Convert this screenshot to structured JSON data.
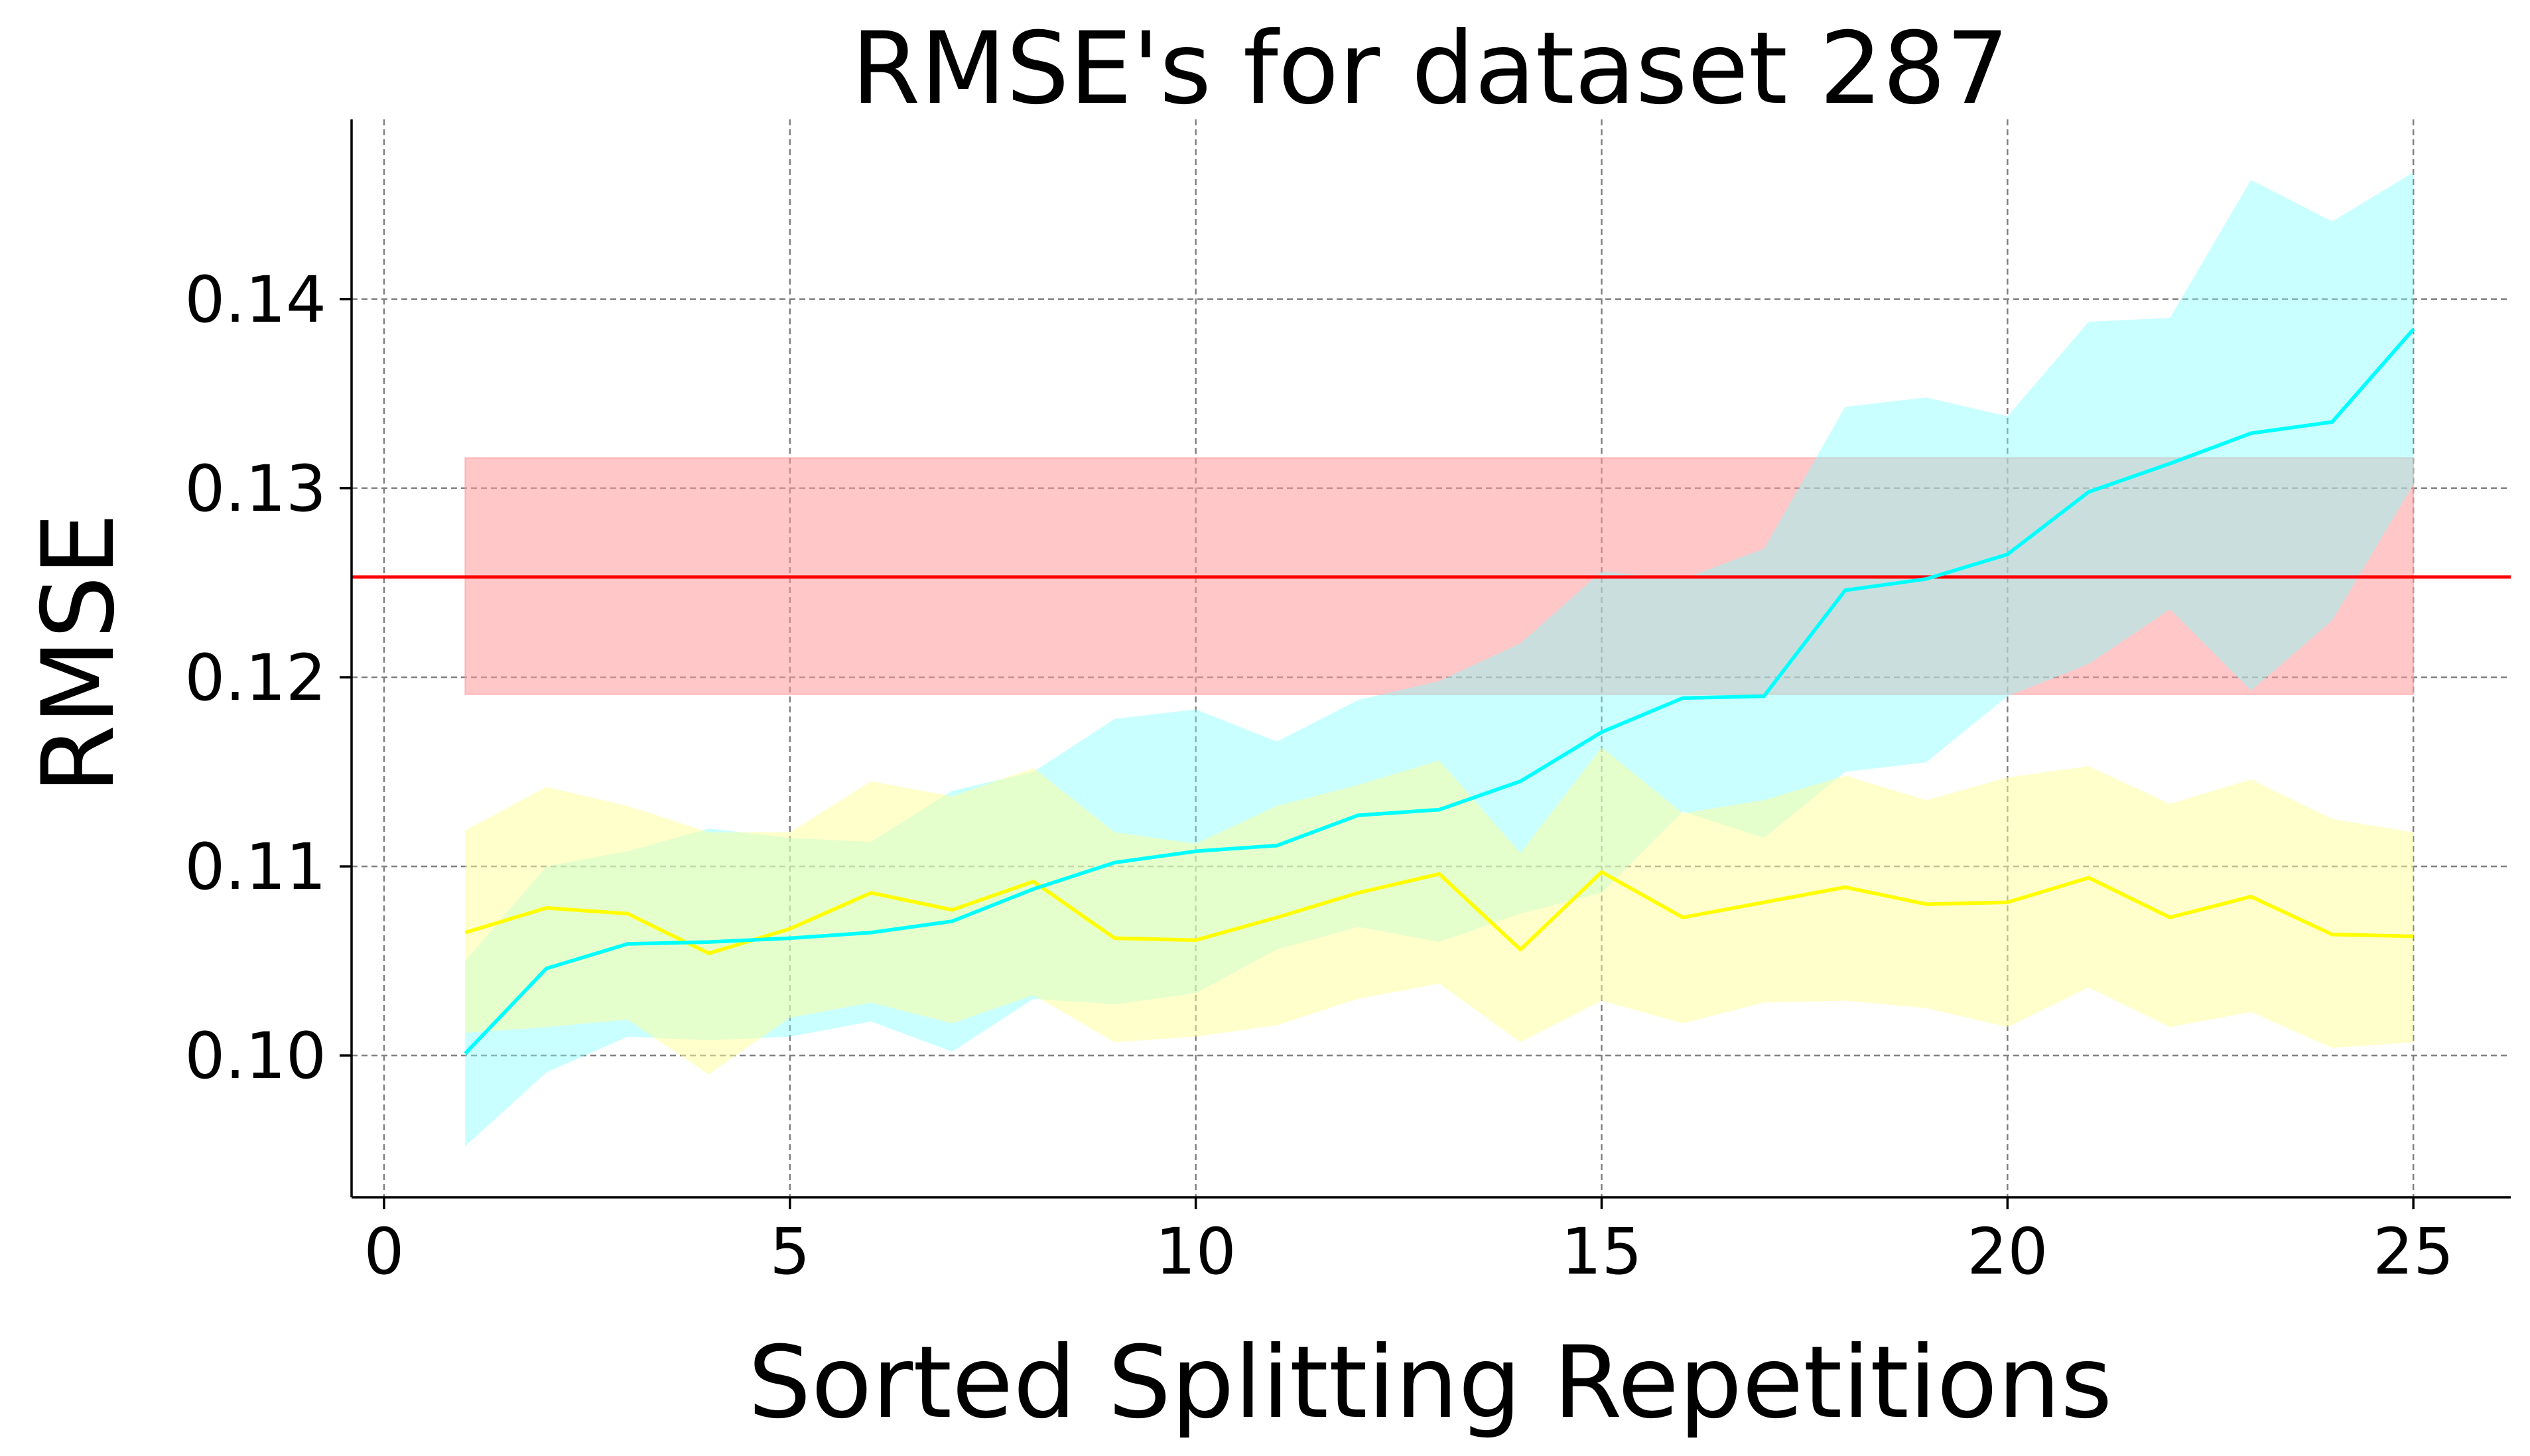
{
  "chart_data": {
    "type": "line",
    "title": "RMSE's for dataset 287",
    "xlabel": "Sorted Splitting Repetitions",
    "ylabel": "RMSE",
    "xlim": [
      -0.4,
      26.2
    ],
    "ylim": [
      0.0925,
      0.1495
    ],
    "xticks": [
      0,
      5,
      10,
      15,
      20,
      25
    ],
    "yticks": [
      0.1,
      0.11,
      0.12,
      0.13,
      0.14
    ],
    "xtick_labels": [
      "0",
      "5",
      "10",
      "15",
      "20",
      "25"
    ],
    "ytick_labels": [
      "0.10",
      "0.11",
      "0.12",
      "0.13",
      "0.14"
    ],
    "grid": true,
    "legend": "none",
    "reference_band": {
      "color": "#ff0000",
      "fill_color": "#ff9999",
      "value": 0.1253,
      "lower": 0.1191,
      "upper": 0.1316,
      "x_start": 1,
      "x_end": 25,
      "line_x_end": 26.2
    },
    "x": [
      1,
      2,
      3,
      4,
      5,
      6,
      7,
      8,
      9,
      10,
      11,
      12,
      13,
      14,
      15,
      16,
      17,
      18,
      19,
      20,
      21,
      22,
      23,
      24,
      25
    ],
    "series": [
      {
        "color": "#00ffff",
        "fill_color": "#80ffff",
        "values": [
          0.1001,
          0.1046,
          0.1059,
          0.106,
          0.1062,
          0.1065,
          0.1071,
          0.1088,
          0.1102,
          0.1108,
          0.1111,
          0.1127,
          0.113,
          0.1145,
          0.1171,
          0.1189,
          0.119,
          0.1246,
          0.1252,
          0.1265,
          0.1298,
          0.1313,
          0.1329,
          0.1335,
          0.1384
        ],
        "lower": [
          0.0952,
          0.0991,
          0.101,
          0.1008,
          0.101,
          0.1018,
          0.1002,
          0.103,
          0.1027,
          0.1033,
          0.1056,
          0.1068,
          0.106,
          0.1075,
          0.1086,
          0.1129,
          0.1115,
          0.115,
          0.1155,
          0.119,
          0.1207,
          0.1236,
          0.1193,
          0.123,
          0.1302
        ],
        "upper": [
          0.105,
          0.11,
          0.1108,
          0.112,
          0.1115,
          0.1113,
          0.114,
          0.115,
          0.1178,
          0.1183,
          0.1166,
          0.1188,
          0.1198,
          0.1218,
          0.1256,
          0.1252,
          0.1268,
          0.1343,
          0.1348,
          0.1338,
          0.1388,
          0.139,
          0.1463,
          0.1441,
          0.1467
        ]
      },
      {
        "color": "#ffff00",
        "fill_color": "#ffff99",
        "values": [
          0.1065,
          0.1078,
          0.1075,
          0.1054,
          0.1067,
          0.1086,
          0.1077,
          0.1092,
          0.1062,
          0.1061,
          0.1073,
          0.1086,
          0.1096,
          0.1056,
          0.1097,
          0.1073,
          0.1081,
          0.1089,
          0.108,
          0.1081,
          0.1094,
          0.1073,
          0.1084,
          0.1064,
          0.1063
        ]
      }
    ],
    "yellow_band_lower": [
      0.1012,
      0.1015,
      0.1019,
      0.099,
      0.102,
      0.1028,
      0.1017,
      0.1032,
      0.1007,
      0.101,
      0.1016,
      0.103,
      0.1038,
      0.1007,
      0.1029,
      0.1017,
      0.1028,
      0.1029,
      0.1025,
      0.1015,
      0.1036,
      0.1015,
      0.1023,
      0.1004,
      0.1007
    ],
    "yellow_band_upper": [
      0.1119,
      0.1142,
      0.1132,
      0.1118,
      0.1118,
      0.1145,
      0.1137,
      0.1152,
      0.1118,
      0.1112,
      0.1132,
      0.1143,
      0.1156,
      0.1107,
      0.1163,
      0.1128,
      0.1135,
      0.1148,
      0.1135,
      0.1147,
      0.1153,
      0.1133,
      0.1146,
      0.1125,
      0.1118
    ]
  }
}
